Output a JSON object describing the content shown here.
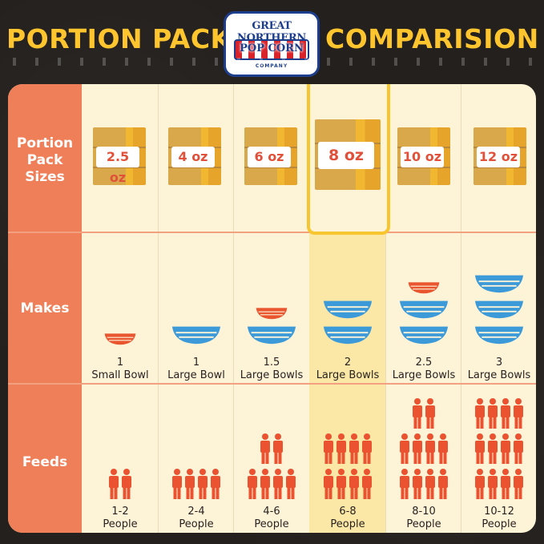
{
  "header": {
    "title_left": "PORTION PACK",
    "title_right": "COMPARISION",
    "logo": {
      "line1": "GREAT NORTHERN",
      "line2": "POP CORN",
      "line3": "COMPANY"
    }
  },
  "colors": {
    "background": "#24201e",
    "title": "#ffc52e",
    "label_column": "#ef7f58",
    "card": "#fdf4d8",
    "highlight": "#f7c52d",
    "bowl_blue": "#3d9ad9",
    "small_bowl_red": "#e9552f",
    "person": "#ea5230"
  },
  "rows": {
    "sizes_label": "Portion Pack Sizes",
    "makes_label": "Makes",
    "feeds_label": "Feeds"
  },
  "columns": [
    {
      "size": "2.5 oz",
      "makes_count": "1",
      "makes_unit": "Small Bowl",
      "feeds_range": "1-2",
      "feeds_unit": "People",
      "highlight": false
    },
    {
      "size": "4 oz",
      "makes_count": "1",
      "makes_unit": "Large Bowl",
      "feeds_range": "2-4",
      "feeds_unit": "People",
      "highlight": false
    },
    {
      "size": "6 oz",
      "makes_count": "1.5",
      "makes_unit": "Large Bowls",
      "feeds_range": "4-6",
      "feeds_unit": "People",
      "highlight": false
    },
    {
      "size": "8 oz",
      "makes_count": "2",
      "makes_unit": "Large Bowls",
      "feeds_range": "6-8",
      "feeds_unit": "People",
      "highlight": true
    },
    {
      "size": "10 oz",
      "makes_count": "2.5",
      "makes_unit": "Large Bowls",
      "feeds_range": "8-10",
      "feeds_unit": "People",
      "highlight": false
    },
    {
      "size": "12 oz",
      "makes_count": "3",
      "makes_unit": "Large Bowls",
      "feeds_range": "10-12",
      "feeds_unit": "People",
      "highlight": false
    }
  ]
}
